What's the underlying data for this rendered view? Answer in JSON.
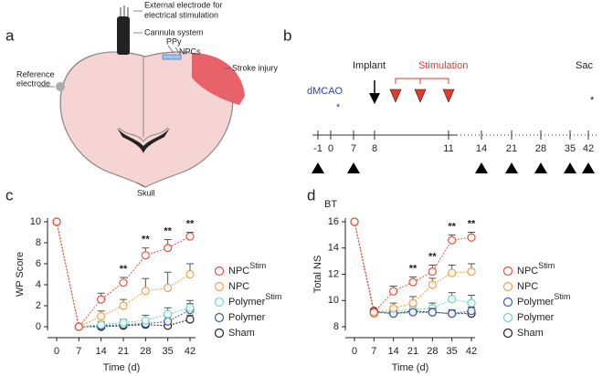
{
  "panel_a": {
    "label": "a",
    "external_electrode": [
      "External electrode for",
      "electrical stimulation"
    ],
    "cannula": "Cannula system",
    "ppy": "PPy",
    "npcs": "NPCs",
    "reference_electrode": [
      "Reference",
      "electrode"
    ],
    "stroke": "Stroke injury",
    "skull": "Skull"
  },
  "panel_b": {
    "label": "b",
    "dmcao": "dMCAO",
    "star": "*",
    "implant": "Implant",
    "stimulation": "Stimulation",
    "sac": "Sac",
    "sac_mark": "*",
    "days": [
      -1,
      0,
      7,
      8,
      11,
      14,
      21,
      28,
      35,
      42
    ],
    "bt": "BT"
  },
  "chart_data": [
    {
      "type": "line",
      "label": "c",
      "ylabel": "WP Score",
      "xlabel": "Time (d)",
      "x": [
        0,
        7,
        14,
        21,
        28,
        35,
        42
      ],
      "xlim": [
        0,
        42
      ],
      "xticks": [
        0,
        7,
        14,
        21,
        28,
        35,
        42
      ],
      "ylim": [
        0,
        10
      ],
      "yticks": [
        0,
        2,
        4,
        6,
        8,
        10
      ],
      "series": [
        {
          "name": "NPC",
          "superscript": "Stim",
          "color": "#e8543f",
          "values": [
            10,
            0,
            2.6,
            4.2,
            6.8,
            7.5,
            8.6
          ],
          "errors": [
            0,
            0,
            0.6,
            0.5,
            0.7,
            0.8,
            0.4
          ]
        },
        {
          "name": "NPC",
          "color": "#f5a04a",
          "values": [
            10,
            0,
            1.0,
            2.0,
            3.4,
            3.7,
            5.0
          ],
          "errors": [
            0,
            0,
            0.5,
            0.6,
            1.2,
            1.5,
            1.0
          ]
        },
        {
          "name": "Polymer",
          "superscript": "Stim",
          "color": "#6fd6c4",
          "values": [
            10,
            0,
            0.2,
            0.4,
            0.6,
            1.2,
            1.8
          ],
          "errors": [
            0,
            0,
            0.3,
            0.3,
            0.5,
            0.6,
            0.7
          ]
        },
        {
          "name": "Polymer",
          "color": "#3d5bb5",
          "values": [
            10,
            0,
            0.1,
            0.2,
            0.3,
            0.5,
            1.6
          ],
          "errors": [
            0,
            0,
            0.2,
            0.2,
            0.3,
            0.4,
            0.6
          ]
        },
        {
          "name": "Sham",
          "color": "#222222",
          "values": [
            10,
            0,
            0,
            0.1,
            0.2,
            0.1,
            0.7
          ],
          "errors": [
            0,
            0,
            0.1,
            0.2,
            0.2,
            0.3,
            0.4
          ]
        }
      ],
      "annotations": [
        {
          "x": 21,
          "text": "**"
        },
        {
          "x": 28,
          "text": "**"
        },
        {
          "x": 35,
          "text": "**"
        },
        {
          "x": 42,
          "text": "**"
        }
      ]
    },
    {
      "type": "line",
      "label": "d",
      "ylabel": "Total NS",
      "xlabel": "Time (d)",
      "x": [
        0,
        7,
        14,
        21,
        28,
        35,
        42
      ],
      "xlim": [
        0,
        42
      ],
      "xticks": [
        0,
        7,
        14,
        21,
        28,
        35,
        42
      ],
      "ylim": [
        8,
        16
      ],
      "yticks": [
        8,
        10,
        12,
        14,
        16
      ],
      "series": [
        {
          "name": "NPC",
          "superscript": "Stim",
          "color": "#e8543f",
          "values": [
            16,
            9.1,
            10.7,
            11.4,
            12.2,
            14.6,
            14.8
          ],
          "errors": [
            0,
            0,
            0.4,
            0.4,
            0.5,
            0.4,
            0.4
          ]
        },
        {
          "name": "NPC",
          "color": "#f5a04a",
          "values": [
            16,
            9.0,
            9.4,
            9.8,
            11.2,
            12.1,
            12.2
          ],
          "errors": [
            0,
            0,
            0.4,
            0.5,
            0.5,
            0.6,
            0.6
          ]
        },
        {
          "name": "Polymer",
          "superscript": "Stim",
          "color": "#3d5bb5",
          "values": [
            16,
            9.1,
            9.0,
            9.1,
            9.1,
            9.0,
            9.2
          ],
          "errors": [
            0,
            0,
            0.2,
            0.2,
            0.3,
            0.3,
            0.3
          ]
        },
        {
          "name": "Polymer",
          "color": "#6fd6c4",
          "values": [
            16,
            9.0,
            9.2,
            9.3,
            9.4,
            10.1,
            9.8
          ],
          "errors": [
            0,
            0,
            0.3,
            0.3,
            0.4,
            0.5,
            0.6
          ]
        },
        {
          "name": "Sham",
          "color": "#222222",
          "values": [
            16,
            9.2,
            9.0,
            9.2,
            9.1,
            9.0,
            9.0
          ],
          "errors": [
            0,
            0,
            0.2,
            0.2,
            0.2,
            0.2,
            0.2
          ]
        }
      ],
      "annotations": [
        {
          "x": 21,
          "text": "**"
        },
        {
          "x": 28,
          "text": "**"
        },
        {
          "x": 35,
          "text": "**"
        },
        {
          "x": 42,
          "text": "**"
        }
      ]
    }
  ]
}
